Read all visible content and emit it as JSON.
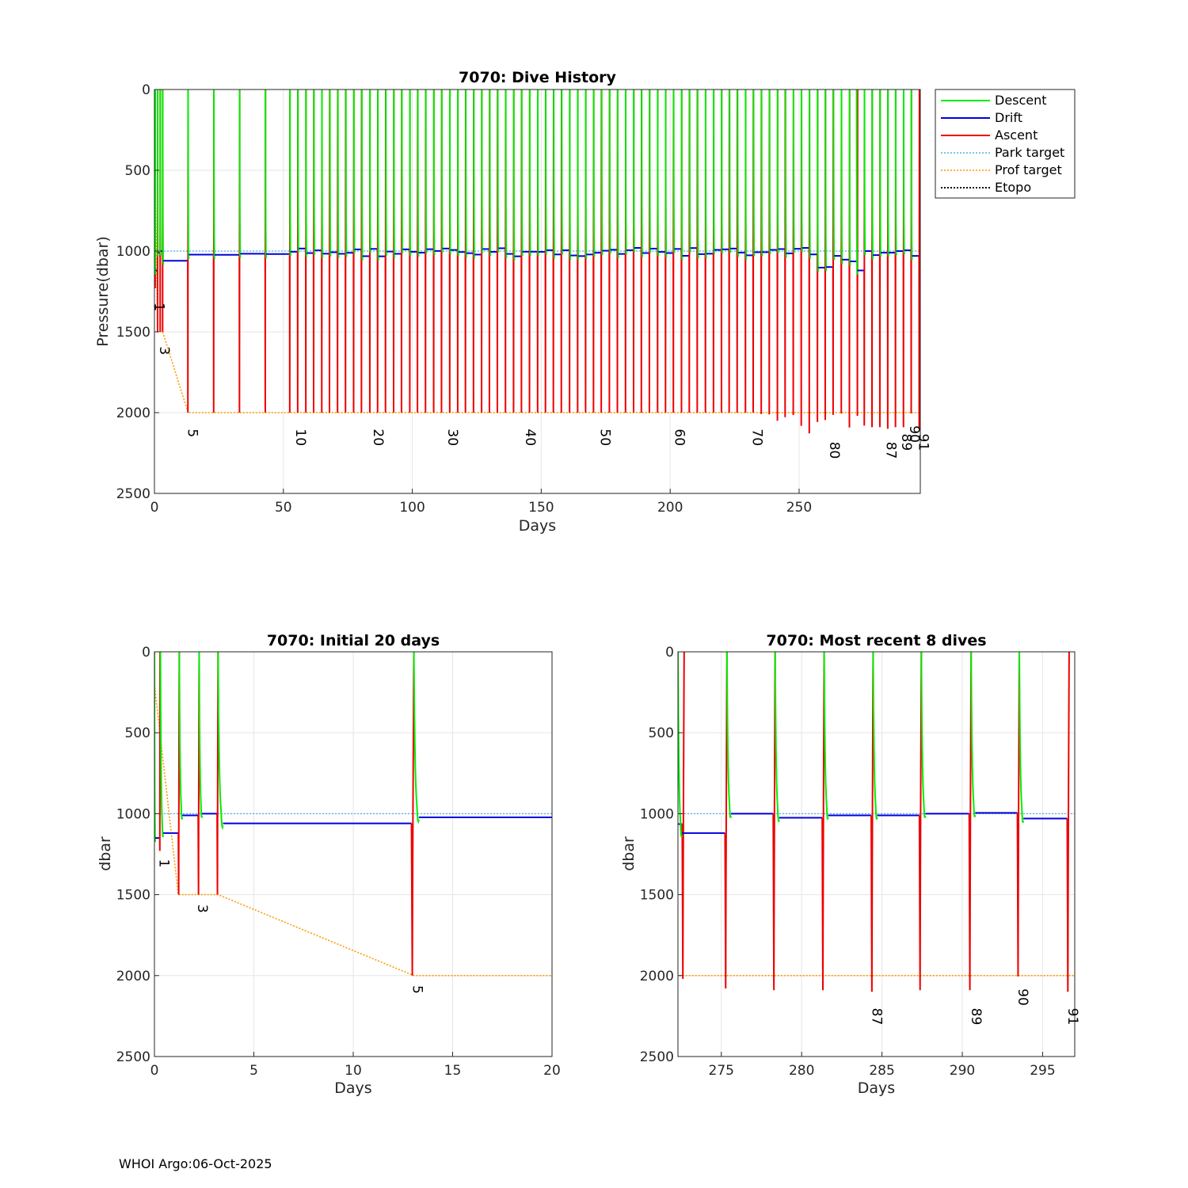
{
  "footer": "WHOI Argo:06-Oct-2025",
  "colors": {
    "descent": "#00ee00",
    "drift": "#0000dd",
    "ascent": "#ee0000",
    "park": "#4db3e6",
    "prof": "#ff9900",
    "etopo": "#000000",
    "grid": "#e6e6e6"
  },
  "chart_data": [
    {
      "id": "history",
      "type": "line",
      "title": "7070: Dive History",
      "xlabel": "Days",
      "ylabel": "Pressure(dbar)",
      "xlim": [
        0,
        297
      ],
      "ylim": [
        0,
        2500
      ],
      "y_reversed": true,
      "xticks": [
        0,
        50,
        100,
        150,
        200,
        250
      ],
      "yticks": [
        0,
        500,
        1000,
        1500,
        2000,
        2500
      ],
      "grid": true,
      "legend": {
        "position": "outside-top-right",
        "entries": [
          "Descent",
          "Drift",
          "Ascent",
          "Park target",
          "Prof target",
          "Etopo"
        ]
      },
      "series_note": "Descent (green) dives from surface to park depth; Drift (blue) holds ~1000 dbar; Ascent (red) starts from profile depth; Park target 1000 dbar; Prof target 1500 then 2000 dbar",
      "profile_labels": [
        {
          "text": "1",
          "day": 0.2,
          "p": 1320
        },
        {
          "text": "3",
          "day": 2.2,
          "p": 1590
        },
        {
          "text": "5",
          "day": 13,
          "p": 2100
        },
        {
          "text": "10",
          "day": 55,
          "p": 2100
        },
        {
          "text": "20",
          "day": 85,
          "p": 2100
        },
        {
          "text": "30",
          "day": 114,
          "p": 2100
        },
        {
          "text": "40",
          "day": 144,
          "p": 2100
        },
        {
          "text": "50",
          "day": 173,
          "p": 2100
        },
        {
          "text": "60",
          "day": 202,
          "p": 2100
        },
        {
          "text": "70",
          "day": 232,
          "p": 2100
        },
        {
          "text": "80",
          "day": 262,
          "p": 2180
        },
        {
          "text": "87",
          "day": 284,
          "p": 2180
        },
        {
          "text": "89",
          "day": 290,
          "p": 2130
        },
        {
          "text": "90",
          "day": 293,
          "p": 2080
        },
        {
          "text": "91",
          "day": 296.5,
          "p": 2130
        }
      ]
    },
    {
      "id": "initial",
      "type": "line",
      "title": "7070: Initial 20 days",
      "xlabel": "Days",
      "ylabel": "dbar",
      "xlim": [
        0,
        20
      ],
      "ylim": [
        0,
        2500
      ],
      "y_reversed": true,
      "xticks": [
        0,
        5,
        10,
        15,
        20
      ],
      "yticks": [
        0,
        500,
        1000,
        1500,
        2000,
        2500
      ],
      "grid": true,
      "profile_labels": [
        {
          "text": "1",
          "day": 0.25,
          "p": 1280
        },
        {
          "text": "3",
          "day": 2.2,
          "p": 1560
        },
        {
          "text": "5",
          "day": 13,
          "p": 2060
        }
      ]
    },
    {
      "id": "recent",
      "type": "line",
      "title": "7070: Most recent 8 dives",
      "xlabel": "Days",
      "ylabel": "dbar",
      "xlim": [
        272.3,
        297
      ],
      "ylim": [
        0,
        2500
      ],
      "y_reversed": true,
      "xticks": [
        275,
        280,
        285,
        290,
        295
      ],
      "yticks": [
        0,
        500,
        1000,
        1500,
        2000,
        2500
      ],
      "grid": true,
      "profile_labels": [
        {
          "text": "87",
          "day": 284.4,
          "p": 2200
        },
        {
          "text": "89",
          "day": 290.6,
          "p": 2200
        },
        {
          "text": "90",
          "day": 293.5,
          "p": 2080
        },
        {
          "text": "91",
          "day": 296.6,
          "p": 2200
        }
      ]
    }
  ]
}
